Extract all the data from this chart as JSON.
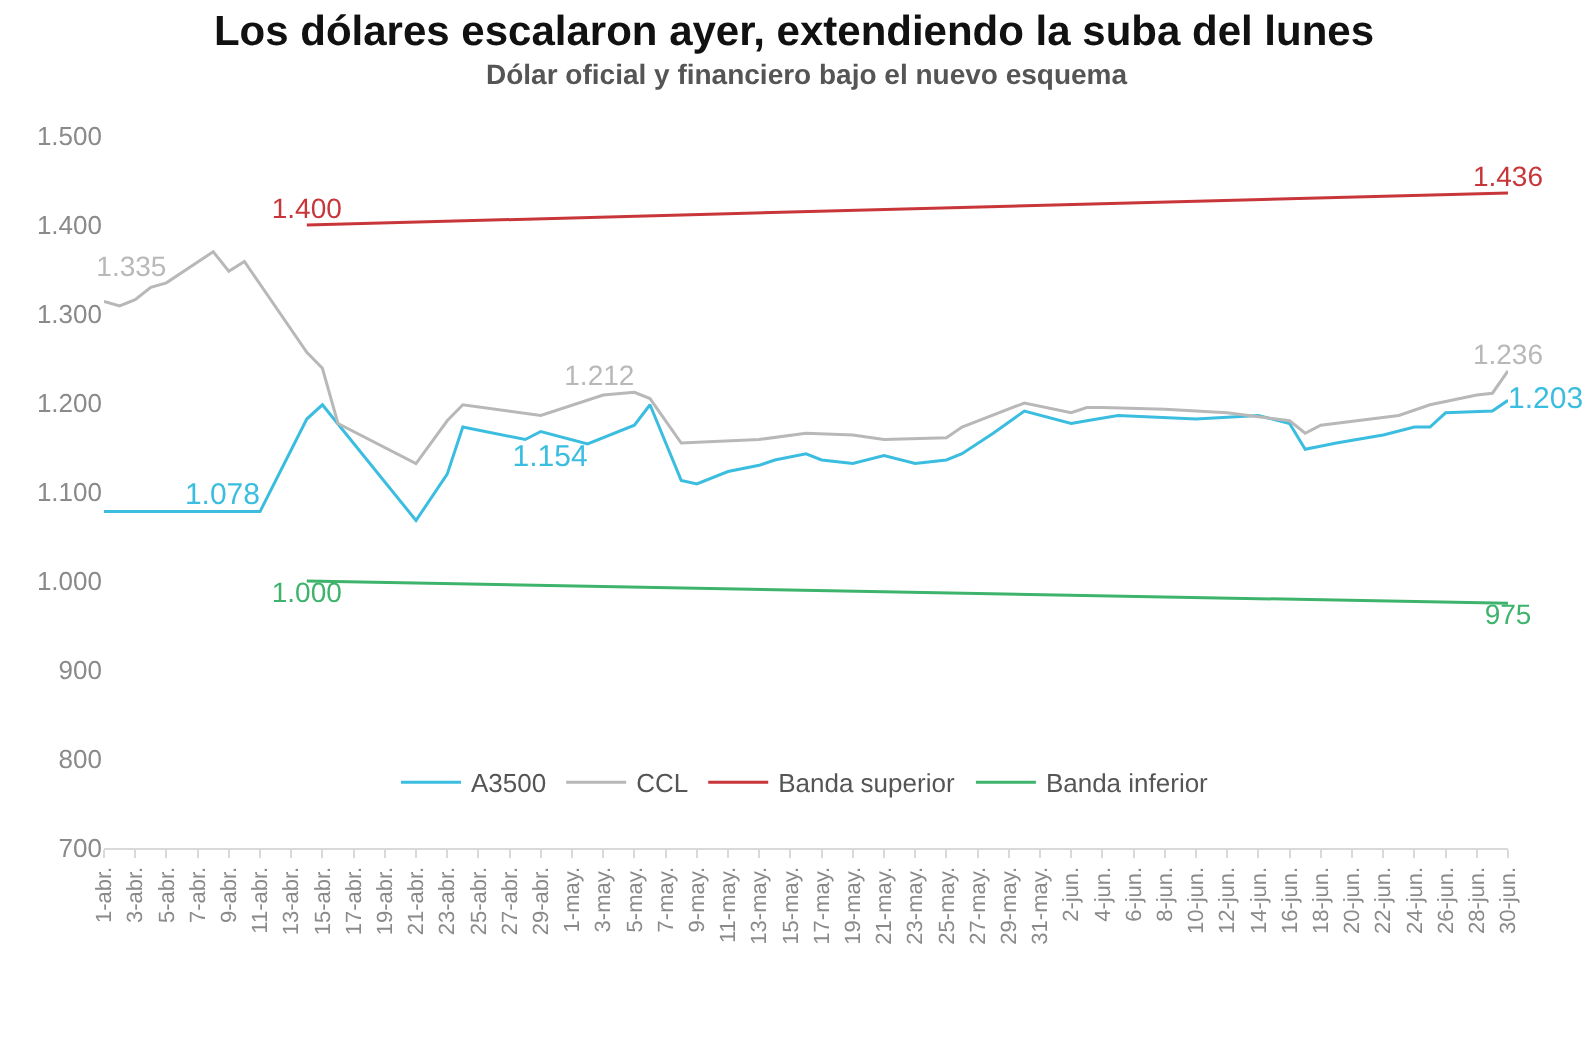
{
  "chart_data": {
    "type": "line",
    "title": "Los dólares escalaron ayer, extendiendo la suba del lunes",
    "subtitle": "Dólar oficial y financiero bajo el nuevo esquema",
    "series": [
      {
        "name": "A3500",
        "color": "#3bbde0",
        "x": [
          "--04-01",
          "--04-11",
          "--04-14",
          "--04-15",
          "--04-21",
          "--04-23",
          "--04-24",
          "--04-28",
          "--04-29",
          "--05-02",
          "--05-05",
          "--05-06",
          "--05-08",
          "--05-09",
          "--05-11",
          "--05-13",
          "--05-14",
          "--05-16",
          "--05-17",
          "--05-19",
          "--05-21",
          "--05-23",
          "--05-25",
          "--05-26",
          "--05-28",
          "--05-30",
          "--06-02",
          "--06-03",
          "--06-05",
          "--06-10",
          "--06-14",
          "--06-16",
          "--06-17",
          "--06-19",
          "--06-22",
          "--06-24",
          "--06-25",
          "--06-26",
          "--06-29",
          "--06-30"
        ],
        "values": [
          1078,
          1078,
          1182,
          1198,
          1068,
          1120,
          1173,
          1159,
          1168,
          1154,
          1175,
          1198,
          1113,
          1109,
          1123,
          1130,
          1136,
          1143,
          1136,
          1132,
          1141,
          1132,
          1136,
          1143,
          1166,
          1191,
          1177,
          1180,
          1186,
          1182,
          1186,
          1177,
          1148,
          1155,
          1164,
          1173,
          1173,
          1189,
          1191,
          1203
        ],
        "value_labels": [
          null,
          "1.078",
          null,
          null,
          null,
          null,
          null,
          null,
          null,
          "1.154",
          null,
          null,
          null,
          null,
          null,
          null,
          null,
          null,
          null,
          null,
          null,
          null,
          null,
          null,
          null,
          null,
          null,
          null,
          null,
          null,
          null,
          null,
          null,
          null,
          null,
          null,
          null,
          null,
          null,
          "1.203"
        ]
      },
      {
        "name": "CCL",
        "color": "#b8b8b8",
        "x": [
          "--04-01",
          "--04-02",
          "--04-03",
          "--04-04",
          "--04-05",
          "--04-08",
          "--04-09",
          "--04-10",
          "--04-14",
          "--04-15",
          "--04-16",
          "--04-21",
          "--04-23",
          "--04-24",
          "--04-29",
          "--05-03",
          "--05-05",
          "--05-06",
          "--05-08",
          "--05-13",
          "--05-16",
          "--05-19",
          "--05-21",
          "--05-25",
          "--05-26",
          "--05-30",
          "--06-02",
          "--06-03",
          "--06-04",
          "--06-08",
          "--06-12",
          "--06-16",
          "--06-17",
          "--06-18",
          "--06-23",
          "--06-25",
          "--06-28",
          "--06-29",
          "--06-30"
        ],
        "values": [
          1314,
          1309,
          1316,
          1330,
          1335,
          1370,
          1348,
          1359,
          1257,
          1239,
          1177,
          1132,
          1180,
          1198,
          1186,
          1209,
          1212,
          1205,
          1155,
          1159,
          1166,
          1164,
          1159,
          1161,
          1173,
          1200,
          1189,
          1195,
          1195,
          1193,
          1189,
          1180,
          1166,
          1175,
          1186,
          1198,
          1209,
          1211,
          1236
        ],
        "value_labels": [
          null,
          null,
          null,
          null,
          "1.335",
          null,
          null,
          null,
          null,
          null,
          null,
          null,
          null,
          null,
          null,
          null,
          "1.212",
          null,
          null,
          null,
          null,
          null,
          null,
          null,
          null,
          null,
          null,
          null,
          null,
          null,
          null,
          null,
          null,
          null,
          null,
          null,
          null,
          null,
          "1.236"
        ]
      },
      {
        "name": "Banda superior",
        "color": "#c8363a",
        "x": [
          "--04-14",
          "--06-30"
        ],
        "values": [
          1400,
          1436
        ],
        "value_labels": [
          "1.400",
          "1.436"
        ]
      },
      {
        "name": "Banda inferior",
        "color": "#3db36b",
        "x": [
          "--04-14",
          "--06-30"
        ],
        "values": [
          1000,
          975
        ],
        "value_labels": [
          "1.000",
          "975"
        ]
      }
    ],
    "xlim": [
      "--04-01",
      "--06-30"
    ],
    "xticks": [
      {
        "value": "--04-01",
        "label": "1-abr."
      },
      {
        "value": "--04-03",
        "label": "3-abr."
      },
      {
        "value": "--04-05",
        "label": "5-abr."
      },
      {
        "value": "--04-07",
        "label": "7-abr."
      },
      {
        "value": "--04-09",
        "label": "9-abr."
      },
      {
        "value": "--04-11",
        "label": "11-abr."
      },
      {
        "value": "--04-13",
        "label": "13-abr."
      },
      {
        "value": "--04-15",
        "label": "15-abr."
      },
      {
        "value": "--04-17",
        "label": "17-abr."
      },
      {
        "value": "--04-19",
        "label": "19-abr."
      },
      {
        "value": "--04-21",
        "label": "21-abr."
      },
      {
        "value": "--04-23",
        "label": "23-abr."
      },
      {
        "value": "--04-25",
        "label": "25-abr."
      },
      {
        "value": "--04-27",
        "label": "27-abr."
      },
      {
        "value": "--04-29",
        "label": "29-abr."
      },
      {
        "value": "--05-01",
        "label": "1-may."
      },
      {
        "value": "--05-03",
        "label": "3-may."
      },
      {
        "value": "--05-05",
        "label": "5-may."
      },
      {
        "value": "--05-07",
        "label": "7-may."
      },
      {
        "value": "--05-09",
        "label": "9-may."
      },
      {
        "value": "--05-11",
        "label": "11-may."
      },
      {
        "value": "--05-13",
        "label": "13-may."
      },
      {
        "value": "--05-15",
        "label": "15-may."
      },
      {
        "value": "--05-17",
        "label": "17-may."
      },
      {
        "value": "--05-19",
        "label": "19-may."
      },
      {
        "value": "--05-21",
        "label": "21-may."
      },
      {
        "value": "--05-23",
        "label": "23-may."
      },
      {
        "value": "--05-25",
        "label": "25-may."
      },
      {
        "value": "--05-27",
        "label": "27-may."
      },
      {
        "value": "--05-29",
        "label": "29-may."
      },
      {
        "value": "--05-31",
        "label": "31-may."
      },
      {
        "value": "--06-02",
        "label": "2-jun."
      },
      {
        "value": "--06-04",
        "label": "4-jun."
      },
      {
        "value": "--06-06",
        "label": "6-jun."
      },
      {
        "value": "--06-08",
        "label": "8-jun."
      },
      {
        "value": "--06-10",
        "label": "10-jun."
      },
      {
        "value": "--06-12",
        "label": "12-jun."
      },
      {
        "value": "--06-14",
        "label": "14-jun."
      },
      {
        "value": "--06-16",
        "label": "16-jun."
      },
      {
        "value": "--06-18",
        "label": "18-jun."
      },
      {
        "value": "--06-20",
        "label": "20-jun."
      },
      {
        "value": "--06-22",
        "label": "22-jun."
      },
      {
        "value": "--06-24",
        "label": "24-jun."
      },
      {
        "value": "--06-26",
        "label": "26-jun."
      },
      {
        "value": "--06-28",
        "label": "28-jun."
      },
      {
        "value": "--06-30",
        "label": "30-jun."
      }
    ],
    "ylim": [
      700,
      1500
    ],
    "yticks": [
      {
        "value": 700,
        "label": "700"
      },
      {
        "value": 800,
        "label": "800"
      },
      {
        "value": 900,
        "label": "900"
      },
      {
        "value": 1000,
        "label": "1.000"
      },
      {
        "value": 1100,
        "label": "1.100"
      },
      {
        "value": 1200,
        "label": "1.200"
      },
      {
        "value": 1300,
        "label": "1.300"
      },
      {
        "value": 1400,
        "label": "1.400"
      },
      {
        "value": 1500,
        "label": "1.500"
      }
    ],
    "legend": "bottom",
    "marker": "none",
    "line_style": "solid"
  }
}
